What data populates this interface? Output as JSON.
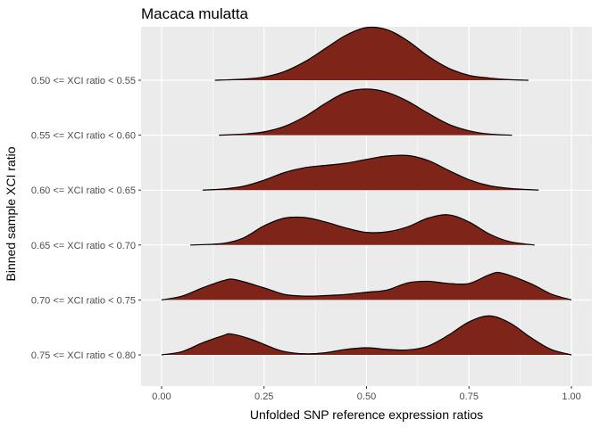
{
  "chart_data": {
    "type": "ridgeline",
    "title": "Macaca mulatta",
    "xlabel": "Unfolded SNP reference expression ratios",
    "ylabel": "Binned sample XCI ratio",
    "xlim": [
      -0.05,
      1.05
    ],
    "x_ticks": [
      "0.00",
      "0.25",
      "0.50",
      "0.75",
      "1.00"
    ],
    "x_tick_values": [
      0,
      0.25,
      0.5,
      0.75,
      1.0
    ],
    "fill_color": "#7f2418",
    "line_color": "#000000",
    "panel_color": "#ebebeb",
    "grid_color": "#ffffff",
    "grid": true,
    "ridge_height": 1.0,
    "ridges": [
      {
        "label": "0.50 <= XCI ratio < 0.55",
        "baseline": 6,
        "density": [
          [
            0.13,
            0.0
          ],
          [
            0.2,
            0.02
          ],
          [
            0.25,
            0.06
          ],
          [
            0.3,
            0.16
          ],
          [
            0.35,
            0.34
          ],
          [
            0.4,
            0.58
          ],
          [
            0.45,
            0.82
          ],
          [
            0.5,
            0.96
          ],
          [
            0.55,
            0.92
          ],
          [
            0.6,
            0.72
          ],
          [
            0.65,
            0.44
          ],
          [
            0.7,
            0.22
          ],
          [
            0.75,
            0.09
          ],
          [
            0.8,
            0.04
          ],
          [
            0.85,
            0.01
          ],
          [
            0.895,
            0.0
          ]
        ]
      },
      {
        "label": "0.55 <= XCI ratio < 0.60",
        "baseline": 5,
        "density": [
          [
            0.14,
            0.0
          ],
          [
            0.2,
            0.02
          ],
          [
            0.25,
            0.06
          ],
          [
            0.3,
            0.16
          ],
          [
            0.35,
            0.34
          ],
          [
            0.4,
            0.58
          ],
          [
            0.45,
            0.78
          ],
          [
            0.5,
            0.84
          ],
          [
            0.55,
            0.78
          ],
          [
            0.6,
            0.62
          ],
          [
            0.65,
            0.4
          ],
          [
            0.7,
            0.2
          ],
          [
            0.75,
            0.08
          ],
          [
            0.8,
            0.02
          ],
          [
            0.855,
            0.0
          ]
        ]
      },
      {
        "label": "0.60 <= XCI ratio < 0.65",
        "baseline": 4,
        "density": [
          [
            0.1,
            0.0
          ],
          [
            0.15,
            0.02
          ],
          [
            0.2,
            0.07
          ],
          [
            0.25,
            0.18
          ],
          [
            0.3,
            0.32
          ],
          [
            0.35,
            0.41
          ],
          [
            0.4,
            0.45
          ],
          [
            0.45,
            0.49
          ],
          [
            0.5,
            0.56
          ],
          [
            0.55,
            0.62
          ],
          [
            0.6,
            0.63
          ],
          [
            0.65,
            0.54
          ],
          [
            0.7,
            0.36
          ],
          [
            0.75,
            0.19
          ],
          [
            0.8,
            0.08
          ],
          [
            0.85,
            0.03
          ],
          [
            0.92,
            0.0
          ]
        ]
      },
      {
        "label": "0.65 <= XCI ratio < 0.70",
        "baseline": 3,
        "density": [
          [
            0.07,
            0.0
          ],
          [
            0.15,
            0.03
          ],
          [
            0.2,
            0.13
          ],
          [
            0.25,
            0.35
          ],
          [
            0.3,
            0.49
          ],
          [
            0.35,
            0.5
          ],
          [
            0.4,
            0.42
          ],
          [
            0.45,
            0.31
          ],
          [
            0.5,
            0.23
          ],
          [
            0.55,
            0.24
          ],
          [
            0.6,
            0.33
          ],
          [
            0.65,
            0.49
          ],
          [
            0.7,
            0.55
          ],
          [
            0.75,
            0.42
          ],
          [
            0.8,
            0.2
          ],
          [
            0.85,
            0.06
          ],
          [
            0.91,
            0.0
          ]
        ]
      },
      {
        "label": "0.70 <= XCI ratio < 0.75",
        "baseline": 2,
        "density": [
          [
            0.0,
            0.0
          ],
          [
            0.05,
            0.07
          ],
          [
            0.1,
            0.22
          ],
          [
            0.15,
            0.35
          ],
          [
            0.18,
            0.37
          ],
          [
            0.25,
            0.22
          ],
          [
            0.3,
            0.1
          ],
          [
            0.35,
            0.07
          ],
          [
            0.4,
            0.08
          ],
          [
            0.45,
            0.1
          ],
          [
            0.5,
            0.14
          ],
          [
            0.55,
            0.18
          ],
          [
            0.6,
            0.31
          ],
          [
            0.65,
            0.34
          ],
          [
            0.7,
            0.3
          ],
          [
            0.75,
            0.3
          ],
          [
            0.8,
            0.46
          ],
          [
            0.83,
            0.49
          ],
          [
            0.9,
            0.3
          ],
          [
            0.95,
            0.11
          ],
          [
            1.0,
            0.0
          ]
        ]
      },
      {
        "label": "0.75 <= XCI ratio < 0.80",
        "baseline": 1,
        "density": [
          [
            0.0,
            0.0
          ],
          [
            0.05,
            0.06
          ],
          [
            0.1,
            0.22
          ],
          [
            0.15,
            0.35
          ],
          [
            0.17,
            0.38
          ],
          [
            0.22,
            0.28
          ],
          [
            0.27,
            0.13
          ],
          [
            0.3,
            0.06
          ],
          [
            0.35,
            0.02
          ],
          [
            0.4,
            0.04
          ],
          [
            0.45,
            0.1
          ],
          [
            0.5,
            0.13
          ],
          [
            0.55,
            0.1
          ],
          [
            0.6,
            0.09
          ],
          [
            0.65,
            0.16
          ],
          [
            0.7,
            0.36
          ],
          [
            0.75,
            0.6
          ],
          [
            0.8,
            0.71
          ],
          [
            0.85,
            0.58
          ],
          [
            0.9,
            0.32
          ],
          [
            0.95,
            0.1
          ],
          [
            1.0,
            0.0
          ]
        ]
      }
    ]
  }
}
